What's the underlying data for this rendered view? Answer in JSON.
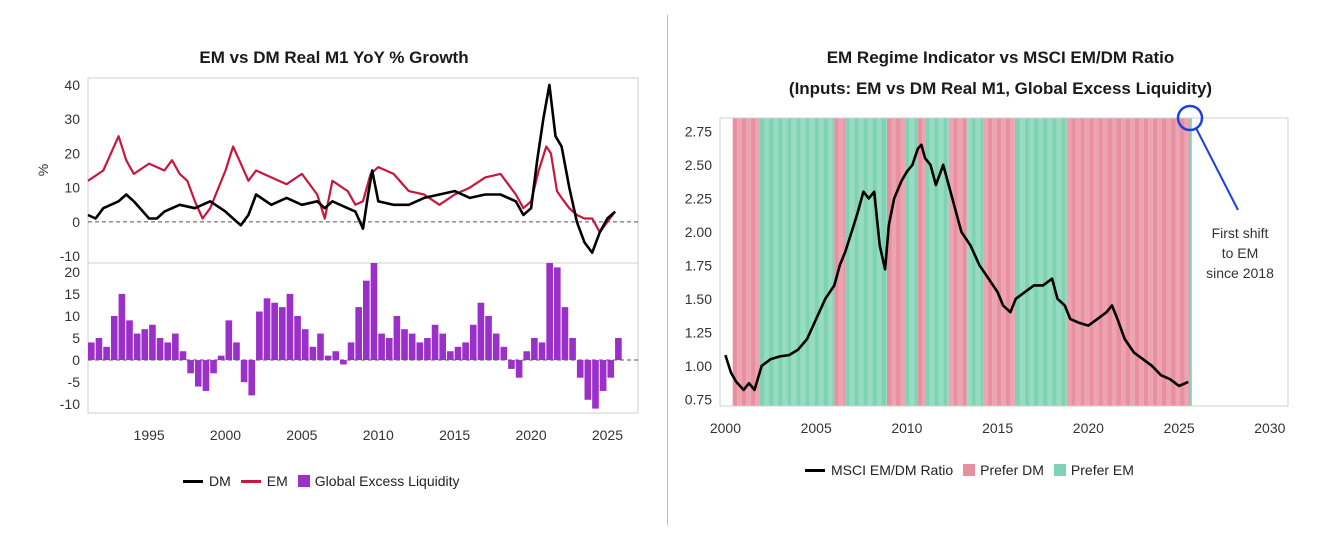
{
  "colors": {
    "dm": "#000000",
    "em": "#c8173c",
    "liquidity": "#9b2fc9",
    "prefer_dm": "#e8909f",
    "prefer_em": "#7fd3b5",
    "annotation": "#1f3fe0"
  },
  "chart_data": [
    {
      "type": "line",
      "title": "EM vs DM Real M1 YoY % Growth",
      "ylabel": "%",
      "ylim": [
        -12,
        42
      ],
      "yticks": [
        -10,
        0,
        10,
        20,
        30,
        40
      ],
      "xlim": [
        1991,
        2027
      ],
      "xticks": [
        1995,
        2000,
        2005,
        2010,
        2015,
        2020,
        2025
      ],
      "series": [
        {
          "name": "DM",
          "x": [
            1991,
            1991.5,
            1992,
            1993,
            1993.5,
            1994,
            1995,
            1995.5,
            1996,
            1997,
            1998,
            1999,
            2000,
            2000.5,
            2001,
            2001.5,
            2002,
            2003,
            2004,
            2005,
            2006,
            2006.5,
            2007,
            2008,
            2008.5,
            2009,
            2009.3,
            2009.6,
            2010,
            2011,
            2012,
            2013,
            2014,
            2015,
            2016,
            2017,
            2018,
            2019,
            2019.5,
            2020,
            2020.4,
            2020.8,
            2021.2,
            2021.6,
            2022,
            2022.5,
            2023,
            2023.5,
            2024,
            2024.5,
            2025,
            2025.5
          ],
          "values": [
            2,
            1,
            4,
            6,
            8,
            6,
            1,
            1,
            3,
            5,
            4,
            6,
            3,
            1,
            -1,
            2,
            8,
            5,
            7,
            5,
            6,
            4,
            6,
            4,
            3,
            -2,
            7,
            15,
            6,
            5,
            5,
            7,
            8,
            9,
            7,
            8,
            8,
            6,
            2,
            4,
            18,
            30,
            40,
            25,
            22,
            10,
            0,
            -6,
            -9,
            -3,
            1,
            3
          ]
        },
        {
          "name": "EM",
          "x": [
            1991,
            1992,
            1992.5,
            1993,
            1993.5,
            1994,
            1995,
            1996,
            1996.5,
            1997,
            1997.5,
            1998,
            1998.5,
            1999,
            2000,
            2000.5,
            2001,
            2001.5,
            2002,
            2003,
            2004,
            2005,
            2006,
            2006.5,
            2007,
            2008,
            2008.5,
            2009,
            2009.5,
            2010,
            2011,
            2012,
            2013,
            2014,
            2015,
            2016,
            2017,
            2018,
            2019,
            2019.5,
            2020,
            2020.5,
            2021,
            2021.3,
            2021.7,
            2022,
            2022.5,
            2023,
            2023.5,
            2024,
            2024.5,
            2025,
            2025.5
          ],
          "values": [
            12,
            15,
            20,
            25,
            18,
            14,
            17,
            15,
            18,
            14,
            12,
            6,
            1,
            4,
            15,
            22,
            17,
            12,
            15,
            13,
            11,
            14,
            8,
            1,
            12,
            9,
            5,
            6,
            14,
            16,
            14,
            9,
            8,
            5,
            8,
            10,
            13,
            14,
            8,
            4,
            6,
            15,
            22,
            20,
            9,
            7,
            4,
            2,
            1,
            1,
            -3,
            0,
            3
          ]
        },
        {
          "name": "Global Excess Liquidity",
          "type": "bar",
          "x": [
            1991,
            1991.5,
            1992,
            1992.5,
            1993,
            1993.5,
            1994,
            1994.5,
            1995,
            1995.5,
            1996,
            1996.5,
            1997,
            1997.5,
            1998,
            1998.5,
            1999,
            1999.5,
            2000,
            2000.5,
            2001,
            2001.5,
            2002,
            2002.5,
            2003,
            2003.5,
            2004,
            2004.5,
            2005,
            2005.5,
            2006,
            2006.5,
            2007,
            2007.5,
            2008,
            2008.5,
            2009,
            2009.5,
            2010,
            2010.5,
            2011,
            2011.5,
            2012,
            2012.5,
            2013,
            2013.5,
            2014,
            2014.5,
            2015,
            2015.5,
            2016,
            2016.5,
            2017,
            2017.5,
            2018,
            2018.5,
            2019,
            2019.5,
            2020,
            2020.5,
            2021,
            2021.5,
            2022,
            2022.5,
            2023,
            2023.5,
            2024,
            2024.5,
            2025,
            2025.5
          ],
          "values": [
            4,
            5,
            3,
            10,
            15,
            9,
            6,
            7,
            8,
            5,
            4,
            6,
            2,
            -3,
            -6,
            -7,
            -3,
            1,
            9,
            4,
            -5,
            -8,
            11,
            14,
            13,
            12,
            15,
            10,
            7,
            3,
            6,
            1,
            2,
            -1,
            4,
            12,
            18,
            22,
            6,
            5,
            10,
            7,
            6,
            4,
            5,
            8,
            6,
            2,
            3,
            4,
            8,
            13,
            10,
            6,
            3,
            -2,
            -4,
            2,
            5,
            4,
            22,
            21,
            12,
            5,
            -4,
            -9,
            -11,
            -7,
            -4,
            5
          ]
        }
      ],
      "liquidity_ylim": [
        -12,
        22
      ],
      "liquidity_yticks": [
        -10,
        -5,
        0,
        5,
        10,
        15,
        20
      ],
      "legend": [
        "DM",
        "EM",
        "Global Excess Liquidity"
      ]
    },
    {
      "type": "line",
      "title": "EM Regime Indicator vs MSCI EM/DM Ratio",
      "subtitle": "(Inputs: EM vs DM Real M1, Global Excess Liquidity)",
      "ylim": [
        0.7,
        2.85
      ],
      "yticks": [
        "0.75",
        "1.00",
        "1.25",
        "1.50",
        "1.75",
        "2.00",
        "2.25",
        "2.50",
        "2.75"
      ],
      "xlim": [
        1999.7,
        2031
      ],
      "xticks": [
        2000,
        2005,
        2010,
        2015,
        2020,
        2025,
        2030
      ],
      "series": [
        {
          "name": "MSCI EM/DM Ratio",
          "x": [
            2000,
            2000.3,
            2000.6,
            2001,
            2001.3,
            2001.6,
            2002,
            2002.5,
            2003,
            2003.5,
            2004,
            2004.5,
            2005,
            2005.5,
            2006,
            2006.3,
            2006.6,
            2007,
            2007.3,
            2007.6,
            2007.9,
            2008.2,
            2008.5,
            2008.8,
            2009,
            2009.3,
            2009.7,
            2010,
            2010.3,
            2010.6,
            2010.8,
            2011,
            2011.3,
            2011.6,
            2012,
            2012.4,
            2013,
            2013.5,
            2014,
            2014.5,
            2015,
            2015.3,
            2015.7,
            2016,
            2016.5,
            2017,
            2017.5,
            2018,
            2018.3,
            2018.7,
            2019,
            2019.5,
            2020,
            2020.5,
            2021,
            2021.3,
            2021.6,
            2022,
            2022.5,
            2023,
            2023.5,
            2024,
            2024.5,
            2025,
            2025.5
          ],
          "values": [
            1.08,
            0.95,
            0.88,
            0.82,
            0.87,
            0.82,
            1.0,
            1.05,
            1.07,
            1.08,
            1.12,
            1.2,
            1.35,
            1.5,
            1.6,
            1.75,
            1.85,
            2.02,
            2.15,
            2.3,
            2.25,
            2.3,
            1.9,
            1.72,
            2.05,
            2.25,
            2.38,
            2.45,
            2.5,
            2.62,
            2.65,
            2.55,
            2.5,
            2.35,
            2.5,
            2.3,
            2.0,
            1.9,
            1.75,
            1.65,
            1.55,
            1.45,
            1.4,
            1.5,
            1.55,
            1.6,
            1.6,
            1.65,
            1.5,
            1.45,
            1.35,
            1.32,
            1.3,
            1.35,
            1.4,
            1.45,
            1.35,
            1.2,
            1.1,
            1.05,
            1.0,
            0.93,
            0.9,
            0.85,
            0.88
          ]
        }
      ],
      "regimes": {
        "prefer_dm": [
          [
            2000.4,
            2001.9
          ],
          [
            2006.0,
            2006.6
          ],
          [
            2008.9,
            2009.9
          ],
          [
            2010.6,
            2011.0
          ],
          [
            2012.3,
            2013.3
          ],
          [
            2014.2,
            2016.0
          ],
          [
            2018.8,
            2025.6
          ]
        ],
        "prefer_em": [
          [
            2001.9,
            2006.0
          ],
          [
            2006.6,
            2008.9
          ],
          [
            2009.9,
            2010.6
          ],
          [
            2011.0,
            2012.3
          ],
          [
            2013.3,
            2014.2
          ],
          [
            2016.0,
            2018.8
          ],
          [
            2025.6,
            2025.7
          ]
        ]
      },
      "annotation": {
        "text_lines": [
          "First shift",
          "to EM",
          "since 2018"
        ],
        "x": 2025.6
      },
      "legend": [
        "MSCI EM/DM Ratio",
        "Prefer DM",
        "Prefer EM"
      ]
    }
  ]
}
